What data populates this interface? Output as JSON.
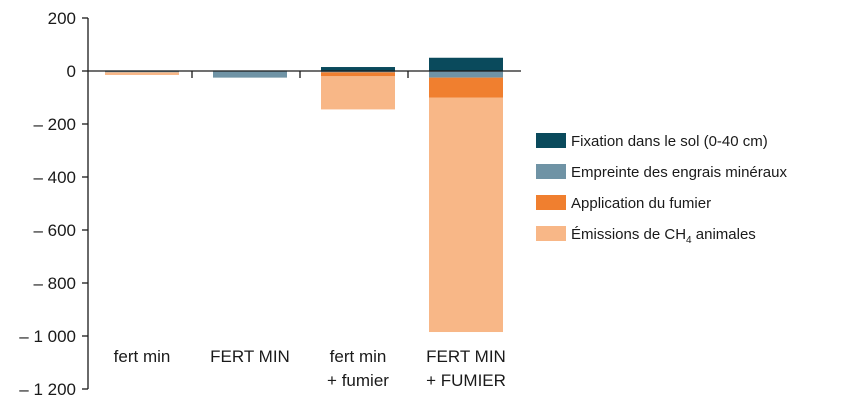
{
  "chart_data": {
    "type": "bar",
    "stacked": true,
    "categories": [
      [
        "fert min"
      ],
      [
        "FERT MIN"
      ],
      [
        "fert min",
        "+ fumier"
      ],
      [
        "FERT MIN",
        "+ FUMIER"
      ]
    ],
    "ylim": [
      -1200,
      200
    ],
    "yticks": [
      200,
      0,
      -200,
      -400,
      -600,
      -800,
      -1000,
      -1200
    ],
    "ytick_labels": [
      "200",
      "0",
      "– 200",
      "– 400",
      "– 600",
      "– 800",
      "– 1 000",
      "– 1 200"
    ],
    "grid": false,
    "legend_position": "right",
    "series": [
      {
        "name": "Fixation dans le sol (0-40 cm)",
        "color": "#0a4a5c",
        "values": [
          2,
          2,
          15,
          50
        ]
      },
      {
        "name": "Empreinte des engrais minéraux",
        "color": "#6f93a5",
        "values": [
          -5,
          -25,
          -5,
          -25
        ]
      },
      {
        "name": "Application du fumier",
        "color": "#f07f2f",
        "values": [
          0,
          0,
          -15,
          -75
        ]
      },
      {
        "name": "Émissions de CH₄ animales",
        "color": "#f8b787",
        "values": [
          -10,
          0,
          -125,
          -885
        ]
      }
    ],
    "legend": [
      {
        "text": "Fixation dans le sol (0-40 cm)"
      },
      {
        "text": "Empreinte des engrais minéraux"
      },
      {
        "text": "Application du fumier"
      },
      {
        "text": "Émissions de CH",
        "sub": "4",
        "after": " animales"
      }
    ]
  }
}
